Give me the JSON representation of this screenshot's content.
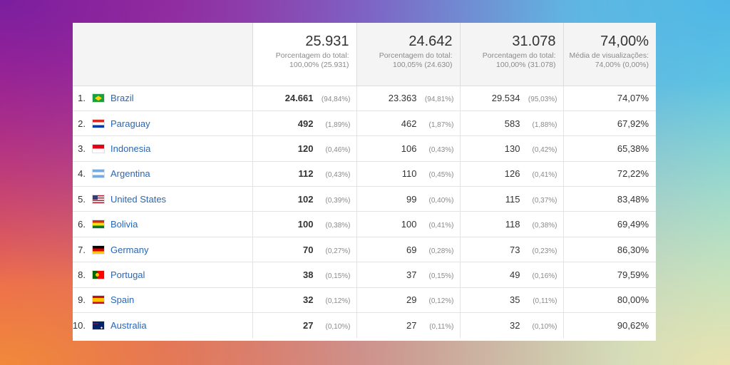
{
  "header": {
    "m1": {
      "total": "25.931",
      "caption": "Porcentagem do total: 100,00% (25.931)"
    },
    "m2": {
      "total": "24.642",
      "caption": "Porcentagem do total: 100,05% (24.630)"
    },
    "m3": {
      "total": "31.078",
      "caption": "Porcentagem do total: 100,00% (31.078)"
    },
    "m4": {
      "total": "74,00%",
      "caption": "Média de visualizações: 74,00% (0,00%)"
    }
  },
  "rows": [
    {
      "index": "1.",
      "flag": "br",
      "country": "Brazil",
      "m1": "24.661",
      "m1_pct": "(94,84%)",
      "m2": "23.363",
      "m2_pct": "(94,81%)",
      "m3": "29.534",
      "m3_pct": "(95,03%)",
      "m4": "74,07%"
    },
    {
      "index": "2.",
      "flag": "py",
      "country": "Paraguay",
      "m1": "492",
      "m1_pct": "(1,89%)",
      "m2": "462",
      "m2_pct": "(1,87%)",
      "m3": "583",
      "m3_pct": "(1,88%)",
      "m4": "67,92%"
    },
    {
      "index": "3.",
      "flag": "id",
      "country": "Indonesia",
      "m1": "120",
      "m1_pct": "(0,46%)",
      "m2": "106",
      "m2_pct": "(0,43%)",
      "m3": "130",
      "m3_pct": "(0,42%)",
      "m4": "65,38%"
    },
    {
      "index": "4.",
      "flag": "ar",
      "country": "Argentina",
      "m1": "112",
      "m1_pct": "(0,43%)",
      "m2": "110",
      "m2_pct": "(0,45%)",
      "m3": "126",
      "m3_pct": "(0,41%)",
      "m4": "72,22%"
    },
    {
      "index": "5.",
      "flag": "us",
      "country": "United States",
      "m1": "102",
      "m1_pct": "(0,39%)",
      "m2": "99",
      "m2_pct": "(0,40%)",
      "m3": "115",
      "m3_pct": "(0,37%)",
      "m4": "83,48%"
    },
    {
      "index": "6.",
      "flag": "bo",
      "country": "Bolivia",
      "m1": "100",
      "m1_pct": "(0,38%)",
      "m2": "100",
      "m2_pct": "(0,41%)",
      "m3": "118",
      "m3_pct": "(0,38%)",
      "m4": "69,49%"
    },
    {
      "index": "7.",
      "flag": "de",
      "country": "Germany",
      "m1": "70",
      "m1_pct": "(0,27%)",
      "m2": "69",
      "m2_pct": "(0,28%)",
      "m3": "73",
      "m3_pct": "(0,23%)",
      "m4": "86,30%"
    },
    {
      "index": "8.",
      "flag": "pt",
      "country": "Portugal",
      "m1": "38",
      "m1_pct": "(0,15%)",
      "m2": "37",
      "m2_pct": "(0,15%)",
      "m3": "49",
      "m3_pct": "(0,16%)",
      "m4": "79,59%"
    },
    {
      "index": "9.",
      "flag": "es",
      "country": "Spain",
      "m1": "32",
      "m1_pct": "(0,12%)",
      "m2": "29",
      "m2_pct": "(0,12%)",
      "m3": "35",
      "m3_pct": "(0,11%)",
      "m4": "80,00%"
    },
    {
      "index": "10.",
      "flag": "au",
      "country": "Australia",
      "m1": "27",
      "m1_pct": "(0,10%)",
      "m2": "27",
      "m2_pct": "(0,11%)",
      "m3": "32",
      "m3_pct": "(0,10%)",
      "m4": "90,62%"
    }
  ]
}
